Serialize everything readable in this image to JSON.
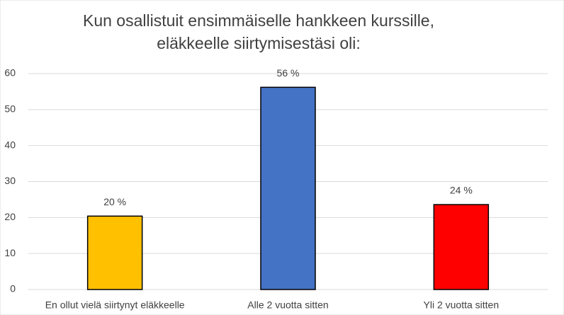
{
  "chart_data": {
    "type": "bar",
    "title": [
      "Kun osallistuit ensimmäiselle hankkeen kurssille,",
      "eläkkeelle siirtymisestäsi oli:"
    ],
    "categories": [
      "En ollut vielä siirtynyt eläkkeelle",
      "Alle 2 vuotta sitten",
      "Yli 2 vuotta sitten"
    ],
    "values": [
      20.4,
      56.2,
      23.6
    ],
    "value_labels": [
      "20 %",
      "56 %",
      "24 %"
    ],
    "colors": [
      "#ffc000",
      "#4472c4",
      "#ff0000"
    ],
    "ylim": [
      0,
      60
    ],
    "yticks": [
      0,
      10,
      20,
      30,
      40,
      50,
      60
    ],
    "grid": true
  }
}
